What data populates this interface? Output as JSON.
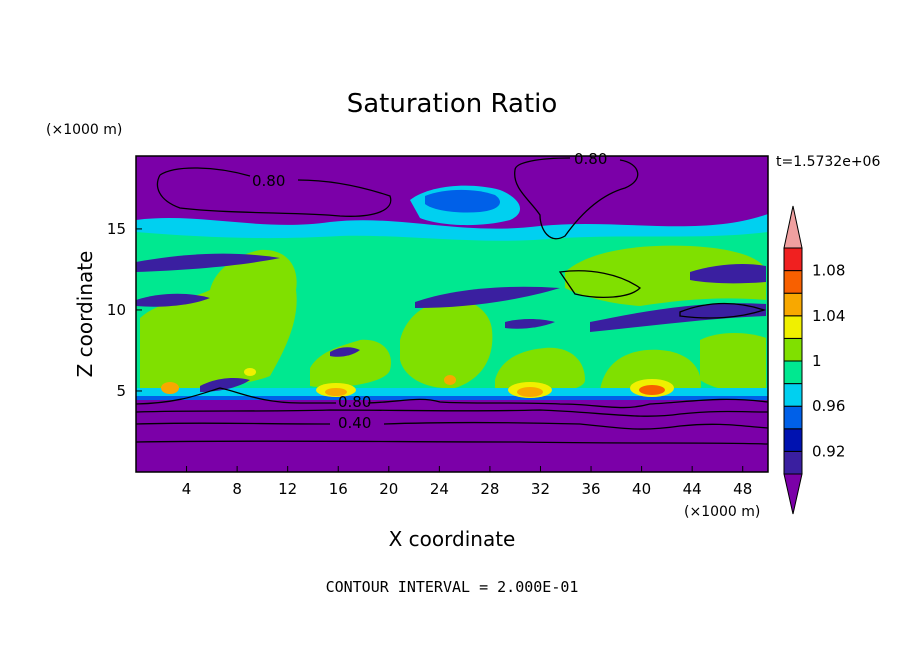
{
  "chart_data": {
    "type": "heatmap",
    "title": "Saturation Ratio",
    "xlabel": "X coordinate",
    "ylabel": "Z coordinate",
    "x_unit": "(×1000 m)",
    "y_unit": "(×1000 m)",
    "time_label": "t=1.5732e+06",
    "footer": "CONTOUR INTERVAL = 2.000E-01",
    "xlim": [
      0,
      50
    ],
    "ylim": [
      0,
      19.5
    ],
    "x_ticks": [
      "4",
      "8",
      "12",
      "16",
      "20",
      "24",
      "28",
      "32",
      "36",
      "40",
      "44",
      "48"
    ],
    "y_ticks": [
      "5",
      "10",
      "15"
    ],
    "colorbar": {
      "levels": [
        0.9,
        0.92,
        0.94,
        0.96,
        0.98,
        1.0,
        1.02,
        1.04,
        1.06,
        1.08,
        1.1
      ],
      "tick_labels": [
        "0.92",
        "0.96",
        "1",
        "1.04",
        "1.08"
      ],
      "colors": [
        "#7b00a8",
        "#3a1fa0",
        "#0012b0",
        "#0060e8",
        "#00d0f0",
        "#00e890",
        "#80e000",
        "#f0f000",
        "#f8a800",
        "#f86000",
        "#f02020",
        "#f0a0a0"
      ]
    },
    "contour_labels": [
      "0.80",
      "0.80",
      "0.80",
      "0.40"
    ],
    "grid": false
  }
}
